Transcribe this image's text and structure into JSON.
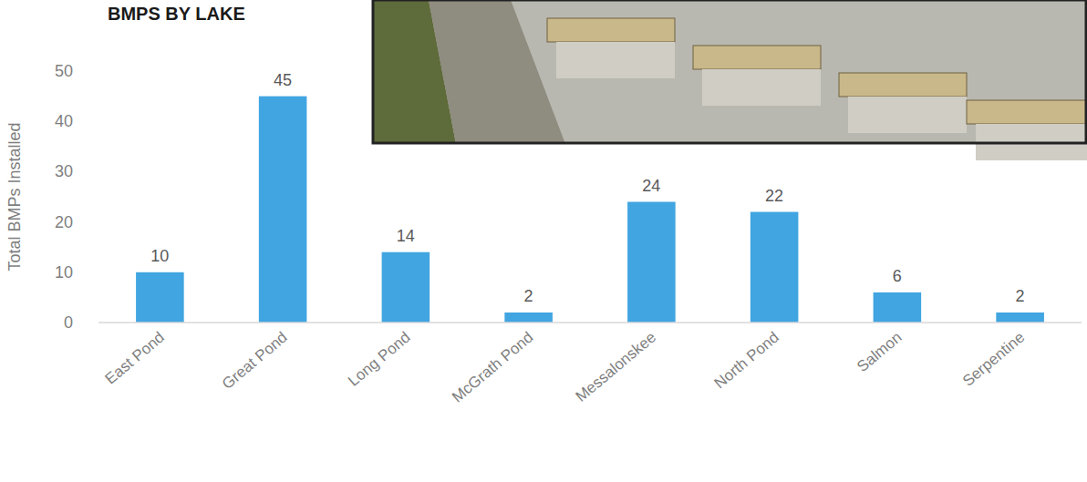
{
  "chart_data": {
    "type": "bar",
    "title": "BMPS BY LAKE",
    "y_label": "Total BMPs Installed",
    "categories": [
      "East Pond",
      "Great Pond",
      "Long Pond",
      "McGrath Pond",
      "Messalonskee",
      "North Pond",
      "Salmon",
      "Serpentine"
    ],
    "values": [
      10,
      45,
      14,
      2,
      24,
      22,
      6,
      2
    ],
    "color": "#41a5e1",
    "ylim": [
      0,
      50
    ],
    "yticks": [
      0,
      10,
      20,
      30,
      40,
      50
    ],
    "grid": false,
    "data_labels": true
  }
}
